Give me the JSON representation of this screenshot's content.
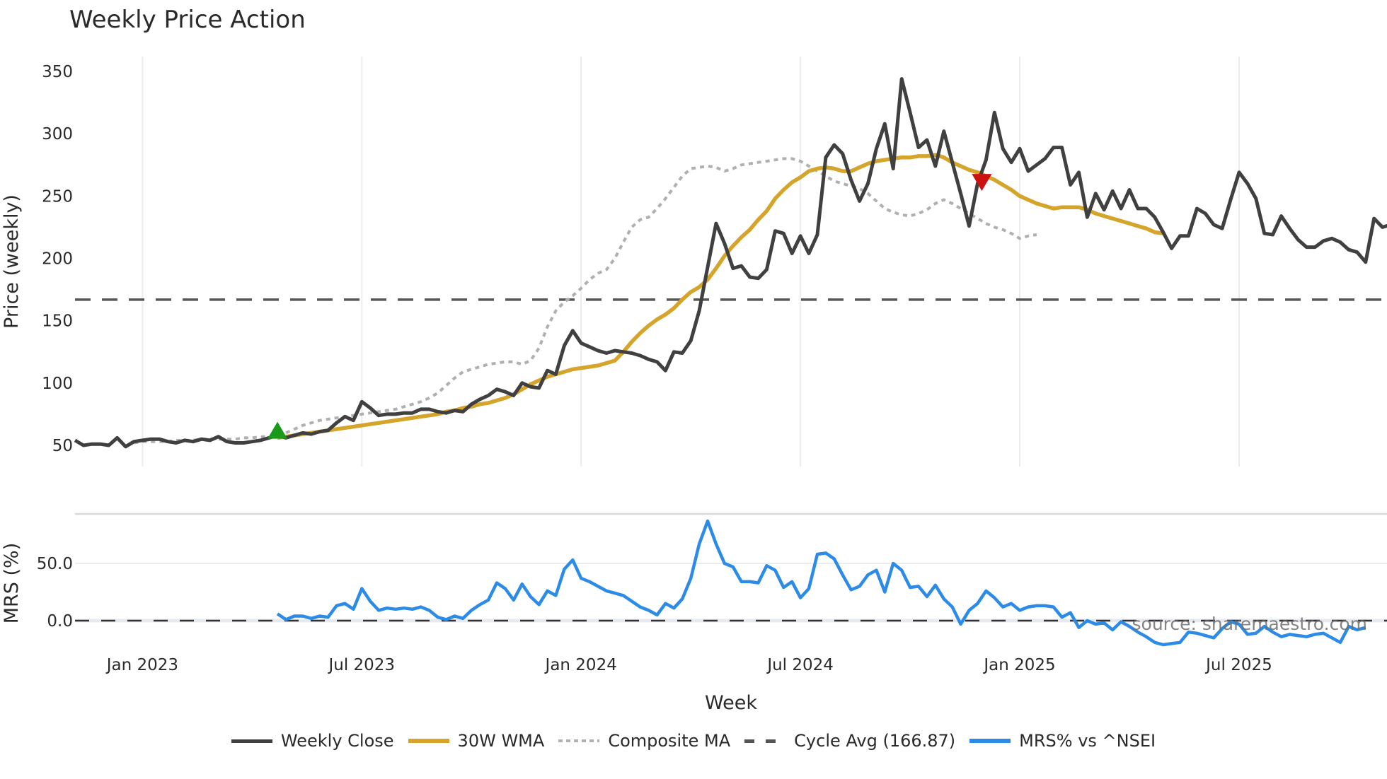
{
  "title": "Weekly Price Action",
  "source_note": "source: sharemaestro.com",
  "colors": {
    "weekly_close": "#404040",
    "wma": "#d4a52a",
    "composite": "#b0b0b0",
    "cycle_avg": "#555555",
    "mrs": "#2b8be6",
    "buy_marker": "#1a9a1a",
    "sell_marker": "#cc1111",
    "grid": "#ececec"
  },
  "legend": [
    {
      "key": "weekly_close",
      "label": "Weekly Close",
      "style": "solid"
    },
    {
      "key": "wma",
      "label": "30W WMA",
      "style": "solid"
    },
    {
      "key": "composite",
      "label": "Composite MA",
      "style": "dotted"
    },
    {
      "key": "cycle_avg",
      "label": "Cycle Avg (166.87)",
      "style": "dashed"
    },
    {
      "key": "mrs",
      "label": "MRS% vs ^NSEI",
      "style": "solid"
    }
  ],
  "chart_data": [
    {
      "type": "line",
      "title": "Weekly Price Action",
      "xlabel": "Week",
      "ylabel": "Price (weekly)",
      "ylim": [
        38,
        360
      ],
      "yticks": [
        50,
        100,
        150,
        200,
        250,
        300,
        350
      ],
      "grid": true,
      "legend_position": "bottom",
      "x_start_week_offset_from_jan2023": -8,
      "x_ticks": [
        {
          "label": "Jan 2023",
          "week": 8
        },
        {
          "label": "Jul 2023",
          "week": 34
        },
        {
          "label": "Jan 2024",
          "week": 60
        },
        {
          "label": "Jul 2024",
          "week": 86
        },
        {
          "label": "Jan 2025",
          "week": 112
        },
        {
          "label": "Jul 2025",
          "week": 138
        }
      ],
      "cycle_avg": 166.87,
      "markers": [
        {
          "type": "buy",
          "shape": "triangle-up",
          "week": 24,
          "value": 61
        },
        {
          "type": "sell",
          "shape": "triangle-down",
          "week": 85.5,
          "value": 262,
          "week_abs": 107.5
        }
      ],
      "series": [
        {
          "name": "Weekly Close",
          "start_week": 0,
          "values": [
            54,
            50,
            51,
            51,
            50,
            56,
            49,
            53,
            54,
            55,
            55,
            53,
            52,
            54,
            53,
            55,
            54,
            57,
            53,
            52,
            52,
            53,
            54,
            56,
            58,
            56,
            58,
            60,
            59,
            61,
            62,
            68,
            73,
            70,
            85,
            80,
            74,
            75,
            75,
            76,
            76,
            79,
            79,
            77,
            76,
            78,
            77,
            83,
            87,
            90,
            95,
            93,
            90,
            100,
            97,
            96,
            110,
            107,
            130,
            142,
            132,
            129,
            126,
            124,
            126,
            125,
            124,
            122,
            119,
            117,
            110,
            125,
            124,
            134,
            158,
            193,
            228,
            212,
            192,
            194,
            185,
            184,
            191,
            222,
            220,
            204,
            218,
            204,
            219,
            281,
            291,
            284,
            263,
            246,
            260,
            288,
            308,
            272,
            344,
            317,
            289,
            295,
            274,
            302,
            277,
            252,
            226,
            260,
            279,
            317,
            288,
            277,
            288,
            270,
            275,
            280,
            289,
            289,
            259,
            269,
            233,
            252,
            239,
            254,
            240,
            255,
            240,
            240,
            233,
            221,
            208,
            218,
            218,
            240,
            236,
            227,
            224,
            247,
            269,
            260,
            248,
            220,
            219,
            234,
            224,
            215,
            209,
            209,
            214,
            216,
            213,
            207,
            205,
            197,
            232,
            225,
            227
          ]
        },
        {
          "name": "30W WMA",
          "start_week": 24,
          "values": [
            56,
            57,
            58,
            59,
            60,
            61,
            62,
            63,
            64,
            65,
            66,
            67,
            68,
            69,
            70,
            71,
            72,
            73,
            74,
            75,
            77,
            78,
            80,
            81,
            83,
            84,
            86,
            88,
            91,
            95,
            99,
            102,
            105,
            107,
            109,
            111,
            112,
            113,
            114,
            116,
            118,
            125,
            133,
            140,
            146,
            151,
            155,
            160,
            167,
            173,
            177,
            183,
            192,
            202,
            210,
            217,
            223,
            231,
            238,
            248,
            255,
            261,
            265,
            270,
            272,
            273,
            272,
            270,
            270,
            273,
            276,
            278,
            279,
            280,
            281,
            281,
            282,
            282,
            283,
            281,
            277,
            274,
            271,
            269,
            266,
            263,
            259,
            255,
            250,
            247,
            244,
            242,
            240,
            241,
            241,
            241,
            239,
            236,
            234,
            232,
            230,
            228,
            226,
            224,
            221,
            220
          ]
        },
        {
          "name": "Composite MA",
          "start_week": 7,
          "values": [
            52,
            53,
            53,
            53,
            53,
            54,
            54,
            54,
            55,
            55,
            55,
            55,
            55,
            56,
            56,
            57,
            57,
            58,
            60,
            63,
            66,
            68,
            70,
            71,
            72,
            73,
            74,
            75,
            76,
            77,
            78,
            79,
            81,
            83,
            85,
            88,
            92,
            98,
            104,
            109,
            111,
            113,
            115,
            116,
            117,
            117,
            115,
            118,
            128,
            145,
            158,
            165,
            170,
            176,
            183,
            188,
            191,
            200,
            213,
            225,
            231,
            233,
            240,
            248,
            257,
            266,
            272,
            273,
            274,
            273,
            270,
            272,
            275,
            276,
            277,
            278,
            279,
            280,
            280,
            278,
            274,
            270,
            266,
            262,
            260,
            258,
            256,
            252,
            246,
            240,
            237,
            235,
            234,
            236,
            239,
            244,
            247,
            244,
            240,
            236,
            232,
            228,
            225,
            223,
            220,
            216,
            218,
            219
          ]
        }
      ]
    },
    {
      "type": "line",
      "title": "",
      "xlabel": "Week",
      "ylabel": "MRS (%)",
      "ylim": [
        -30,
        95
      ],
      "yticks": [
        0.0,
        50.0
      ],
      "yticklabels": [
        "0.0",
        "50.0"
      ],
      "zero_line": "dashed",
      "series": [
        {
          "name": "MRS% vs ^NSEI",
          "start_week": 24,
          "values": [
            6,
            1,
            4,
            4,
            2,
            4,
            3,
            13,
            15,
            10,
            28,
            17,
            9,
            11,
            10,
            11,
            10,
            12,
            9,
            3,
            1,
            4,
            2,
            9,
            14,
            18,
            33,
            28,
            18,
            32,
            21,
            14,
            26,
            22,
            45,
            53,
            37,
            34,
            30,
            26,
            24,
            22,
            17,
            12,
            9,
            5,
            15,
            11,
            19,
            37,
            67,
            87,
            67,
            50,
            47,
            34,
            34,
            33,
            48,
            44,
            29,
            34,
            20,
            28,
            58,
            59,
            54,
            40,
            27,
            30,
            40,
            44,
            25,
            50,
            44,
            29,
            30,
            21,
            31,
            19,
            12,
            -3,
            9,
            15,
            26,
            20,
            12,
            15,
            9,
            12,
            13,
            13,
            12,
            3,
            7,
            -6,
            0,
            -3,
            -2,
            -8,
            -1,
            -5,
            -10,
            -14,
            -19,
            -21,
            -20,
            -19,
            -10,
            -11,
            -13,
            -15,
            -7,
            -1,
            -3,
            -12,
            -11,
            -5,
            -10,
            -14,
            -12,
            -13,
            -14,
            -12,
            -11,
            -15,
            -19,
            -5,
            -8,
            -6
          ]
        }
      ]
    }
  ],
  "axes": {
    "price_yticks": [
      "350",
      "300",
      "250",
      "200",
      "150",
      "100",
      "50"
    ],
    "price_ylabel": "Price (weekly)",
    "mrs_yticks": [
      "50.0",
      "0.0"
    ],
    "mrs_ylabel": "MRS (%)",
    "xticks": [
      "Jan 2023",
      "Jul 2023",
      "Jan 2024",
      "Jul 2024",
      "Jan 2025",
      "Jul 2025"
    ],
    "xlabel": "Week"
  }
}
